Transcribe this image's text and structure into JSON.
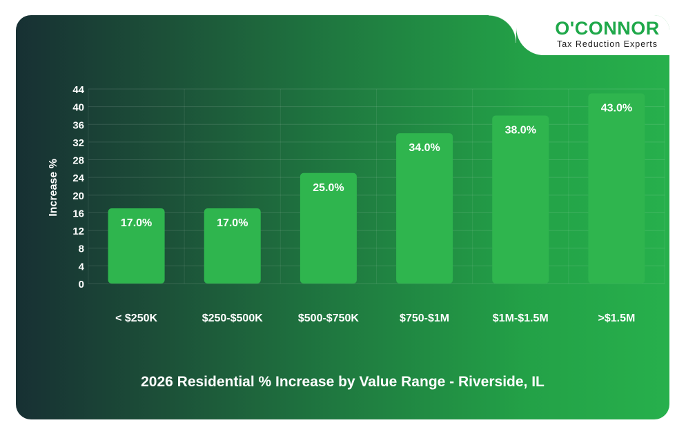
{
  "logo": {
    "name": "O'CONNOR",
    "tagline": "Tax Reduction Experts"
  },
  "colors": {
    "bar": "#2fb54e",
    "text": "#ffffff",
    "brand_green": "#1fa84a"
  },
  "chart_data": {
    "type": "bar",
    "title": "2026 Residential % Increase by Value Range - Riverside, IL",
    "xlabel": "",
    "ylabel": "Increase %",
    "ylim": [
      0,
      44
    ],
    "yticks": [
      0,
      4,
      8,
      12,
      16,
      20,
      24,
      28,
      32,
      36,
      40,
      44
    ],
    "grid": true,
    "categories": [
      "< $250K",
      "$250-$500K",
      "$500-$750K",
      "$750-$1M",
      "$1M-$1.5M",
      ">$1.5M"
    ],
    "values": [
      17.0,
      17.0,
      25.0,
      34.0,
      38.0,
      43.0
    ],
    "data_labels": [
      "17.0%",
      "17.0%",
      "25.0%",
      "34.0%",
      "38.0%",
      "43.0%"
    ]
  }
}
